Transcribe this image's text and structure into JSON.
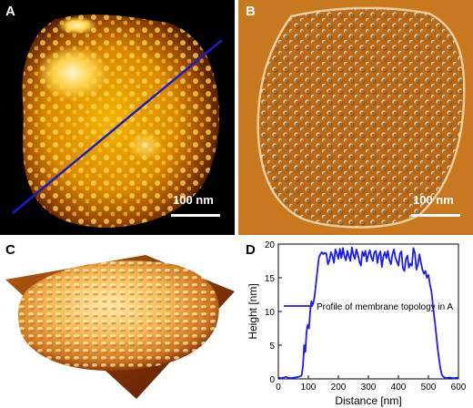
{
  "panels": {
    "a": {
      "label": "A",
      "scale_text": "100 nm"
    },
    "b": {
      "label": "B",
      "scale_text": "100 nm"
    },
    "c": {
      "label": "C"
    },
    "d": {
      "label": "D"
    }
  },
  "chart_data": {
    "type": "line",
    "title": "",
    "xlabel": "Distance [nm]",
    "ylabel": "Height [nm]",
    "xlim": [
      0,
      600
    ],
    "ylim": [
      0,
      20
    ],
    "xticks": [
      0,
      100,
      200,
      300,
      400,
      500,
      600
    ],
    "yticks": [
      0,
      5,
      10,
      15,
      20
    ],
    "legend_location": "center",
    "series": [
      {
        "name": "Profile of membrane topology in A",
        "color": "#1a1aff",
        "x": [
          0,
          10,
          25,
          40,
          55,
          68,
          78,
          82,
          86,
          90,
          94,
          98,
          102,
          106,
          110,
          115,
          120,
          125,
          130,
          135,
          140,
          145,
          150,
          155,
          160,
          165,
          170,
          175,
          180,
          185,
          190,
          195,
          200,
          205,
          210,
          215,
          220,
          225,
          230,
          235,
          240,
          245,
          250,
          255,
          260,
          265,
          270,
          275,
          280,
          285,
          290,
          295,
          300,
          305,
          310,
          315,
          320,
          325,
          330,
          335,
          340,
          345,
          350,
          355,
          360,
          365,
          370,
          375,
          380,
          385,
          390,
          395,
          400,
          405,
          410,
          415,
          420,
          425,
          430,
          435,
          440,
          445,
          450,
          455,
          460,
          465,
          470,
          475,
          480,
          485,
          490,
          495,
          500,
          505,
          510,
          515,
          520,
          525,
          530,
          535,
          540,
          545,
          550,
          555,
          560,
          570,
          585,
          600
        ],
        "y": [
          0.2,
          0.1,
          0.3,
          0.1,
          0.2,
          0.3,
          0.5,
          2,
          5,
          4,
          7,
          8,
          7.5,
          10,
          11.5,
          11,
          12,
          14,
          16,
          18,
          18.5,
          18.8,
          18.5,
          18.7,
          18.6,
          17,
          17.5,
          18.8,
          18.3,
          17.2,
          19.2,
          18.6,
          17.8,
          19.3,
          17.9,
          19.4,
          18.2,
          17.6,
          19.0,
          18.2,
          17.5,
          19.5,
          18.4,
          17.8,
          19.2,
          18.5,
          17.4,
          16.8,
          18.9,
          18.2,
          19.0,
          17.4,
          18.5,
          19.1,
          18.0,
          17.5,
          18.8,
          19.0,
          17.2,
          18.4,
          18.9,
          16.6,
          18.2,
          18.8,
          17.9,
          19.0,
          17.6,
          17.0,
          18.5,
          19.2,
          18.0,
          17.4,
          16.8,
          18.6,
          18.9,
          16.4,
          16.0,
          17.8,
          18.3,
          16.5,
          17.1,
          16.8,
          19.4,
          18.6,
          16.2,
          17.0,
          18.5,
          17.2,
          16.2,
          15.6,
          16.0,
          15.0,
          15.4,
          14.0,
          13.0,
          11.0,
          9.0,
          7.0,
          4.8,
          3.0,
          1.5,
          0.6,
          0.3,
          0.2,
          0.1,
          0.2,
          0.1,
          0.2
        ]
      }
    ]
  }
}
